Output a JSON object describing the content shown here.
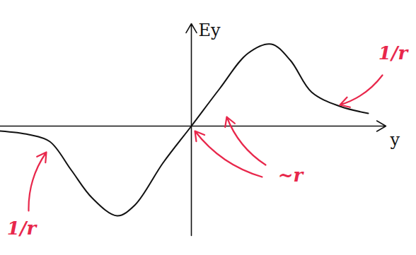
{
  "chart_data": {
    "type": "line",
    "xlabel": "y",
    "ylabel": "Ey",
    "x": [
      -2.7,
      -2.3,
      -2.0,
      -1.7,
      -1.4,
      -1.05,
      -0.8,
      -0.4,
      0,
      0.4,
      0.8,
      1.13,
      1.4,
      1.7,
      2.1,
      2.5
    ],
    "values": [
      -0.07,
      -0.12,
      -0.22,
      -0.62,
      -1.02,
      -1.27,
      -1.12,
      -0.52,
      0,
      0.53,
      1.03,
      1.16,
      0.93,
      0.48,
      0.28,
      0.18
    ],
    "color": "#111111",
    "xlim": [
      -2.7,
      2.75
    ],
    "ylim": [
      -1.55,
      1.45
    ],
    "xticks": [],
    "yticks": [],
    "tick_labels": false,
    "grid": false,
    "annotations": [
      {
        "text": "1/r",
        "x": 2.85,
        "y": 1.03,
        "color": "#e8274b",
        "arrows": [
          {
            "x1": 2.7,
            "y1": 0.72,
            "x2": 2.1,
            "y2": 0.3
          }
        ]
      },
      {
        "text": "1/r",
        "x": -2.4,
        "y": -1.45,
        "color": "#e8274b",
        "arrows": [
          {
            "x1": -2.3,
            "y1": -1.2,
            "x2": -2.05,
            "y2": -0.37
          }
        ]
      },
      {
        "text": "~r",
        "x": 1.4,
        "y": -0.7,
        "color": "#e8274b",
        "arrows": [
          {
            "x1": 1.05,
            "y1": -0.55,
            "x2": 0.5,
            "y2": 0.13
          },
          {
            "x1": 1.0,
            "y1": -0.72,
            "x2": 0.05,
            "y2": -0.07
          }
        ]
      }
    ]
  }
}
